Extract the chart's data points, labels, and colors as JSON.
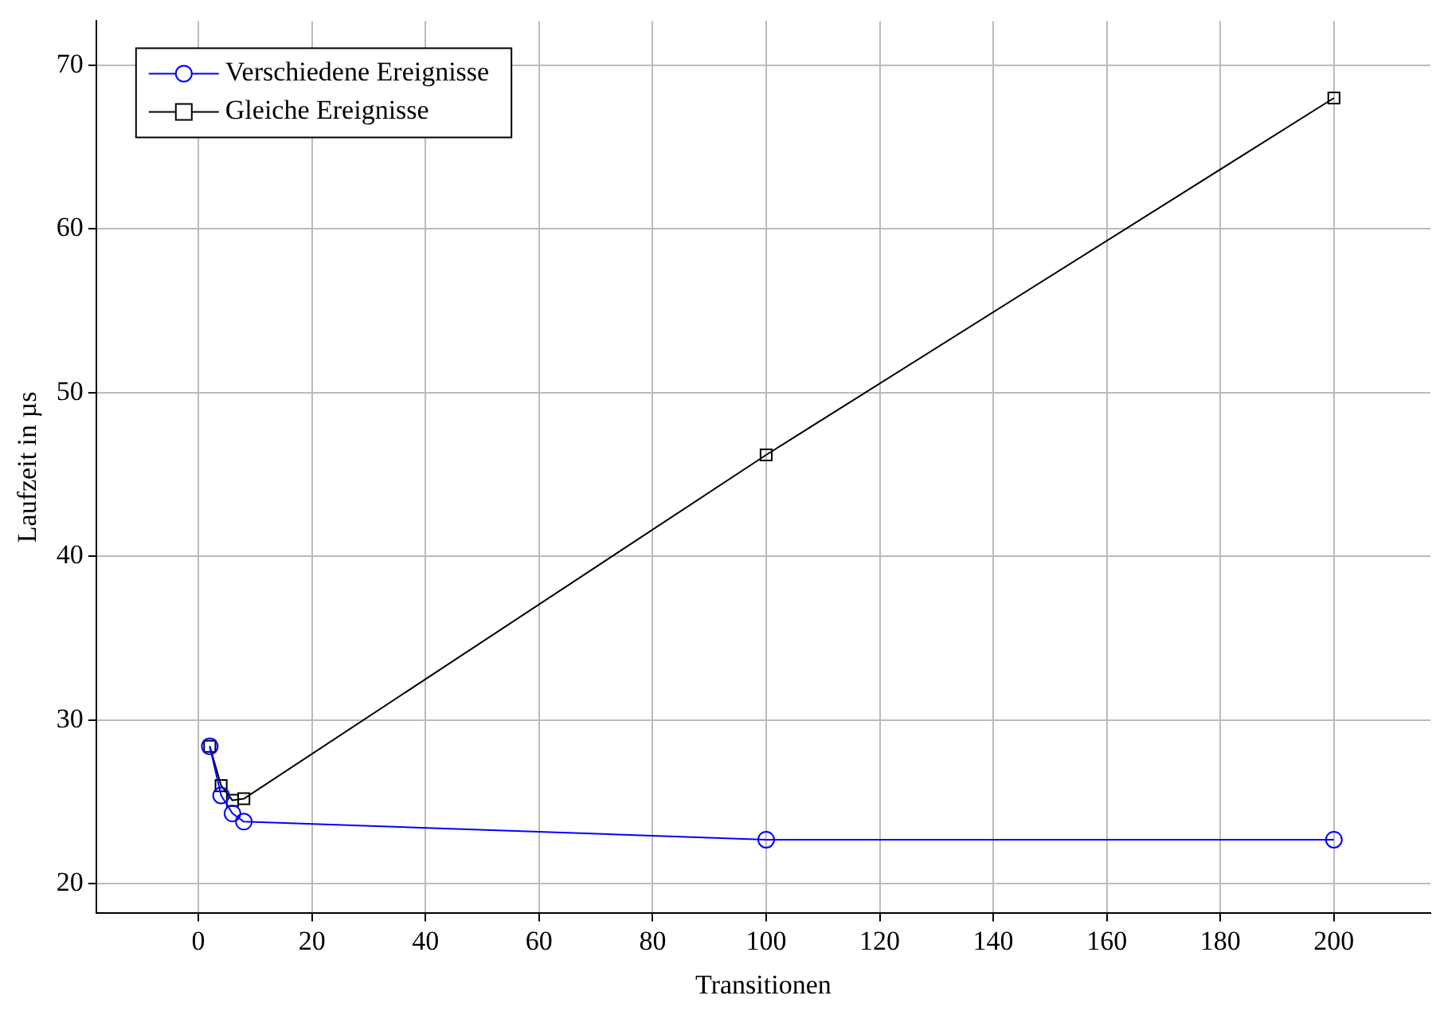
{
  "chart_data": {
    "type": "line",
    "xlabel": "Transitionen",
    "ylabel": "Laufzeit in µs",
    "series": [
      {
        "name": "Verschiedene Ereignisse",
        "color": "#0000ff",
        "marker": "circle",
        "x": [
          2,
          4,
          6,
          8,
          100,
          200
        ],
        "values": [
          28.4,
          25.4,
          24.3,
          23.8,
          22.7,
          22.7
        ]
      },
      {
        "name": "Gleiche Ereignisse",
        "color": "#000000",
        "marker": "square",
        "x": [
          2,
          4,
          6,
          8,
          100,
          200
        ],
        "values": [
          28.4,
          26.0,
          25.1,
          25.2,
          46.2,
          68.0
        ]
      }
    ],
    "xlim": [
      -18,
      217
    ],
    "xticks": [
      0,
      20,
      40,
      60,
      80,
      100,
      120,
      140,
      160,
      180,
      200
    ],
    "ylim": [
      18.2,
      72.7
    ],
    "yticks": [
      20,
      30,
      40,
      50,
      60,
      70
    ],
    "grid": true,
    "legend": "top left"
  }
}
